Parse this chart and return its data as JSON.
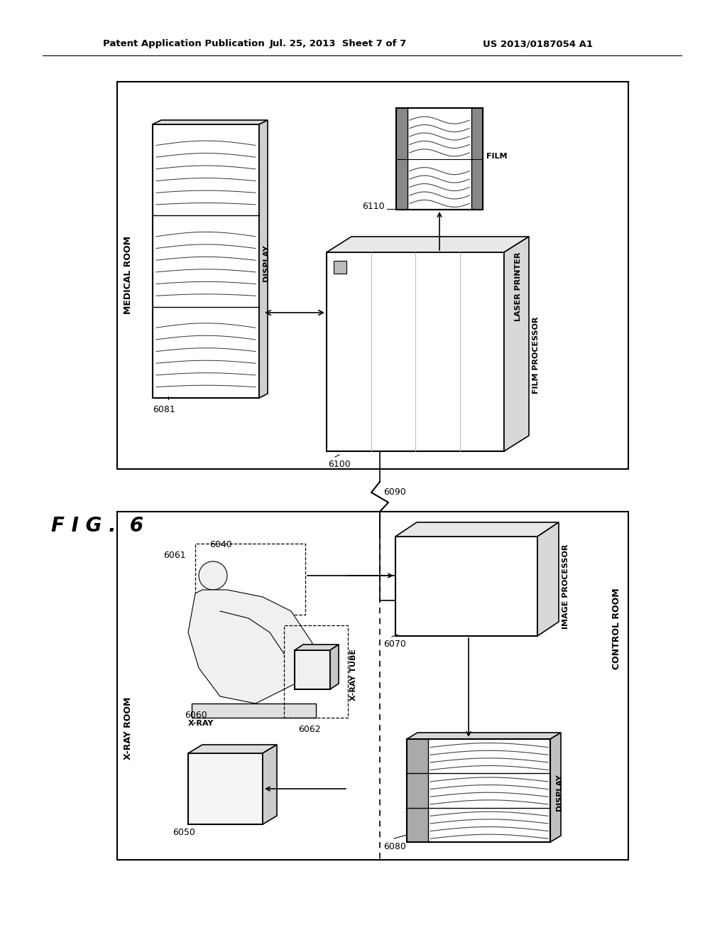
{
  "bg_color": "#ffffff",
  "line_color": "#000000",
  "header_left": "Patent Application Publication",
  "header_mid": "Jul. 25, 2013  Sheet 7 of 7",
  "header_right": "US 2013/0187054 A1",
  "fig_label": "F I G .  6",
  "medical_room_label": "MEDICAL ROOM",
  "xray_room_label": "X-RAY ROOM",
  "control_room_label": "CONTROL ROOM",
  "label_display_medical": "DISPLAY",
  "label_film_processor": "FILM\nPROCESSOR",
  "label_laser_printer": "LASER PRINTER",
  "label_film": "FILM",
  "label_image_processor": "IMAGE PROCESSOR",
  "label_display_control": "DISPLAY",
  "label_xray": "X-RAY",
  "label_xray_tube": "X-RAY TUBE",
  "ref_6081": "6081",
  "ref_6100": "6100",
  "ref_6110": "6110",
  "ref_6070": "6070",
  "ref_6080": "6080",
  "ref_6090": "6090",
  "ref_6040": "6040",
  "ref_6060": "6060",
  "ref_6061": "6061",
  "ref_6062": "6062",
  "ref_6050": "6050"
}
